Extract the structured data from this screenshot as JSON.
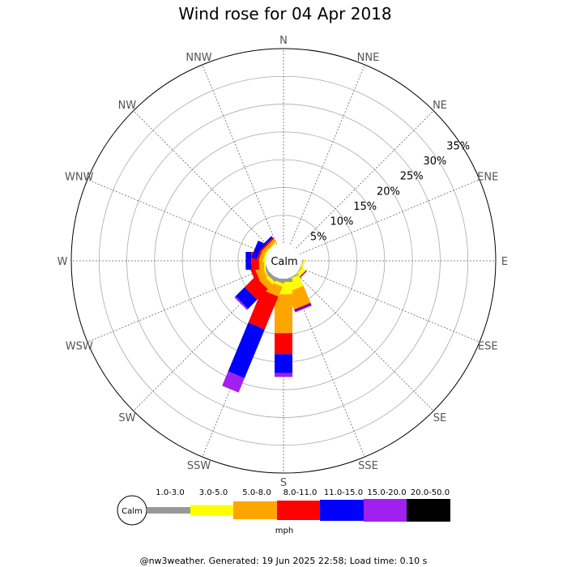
{
  "chart_data": {
    "type": "wind-rose",
    "title": "Wind rose for 04 Apr 2018",
    "directions": [
      "N",
      "NNE",
      "NE",
      "ENE",
      "E",
      "ESE",
      "SE",
      "SSE",
      "S",
      "SSW",
      "SW",
      "WSW",
      "W",
      "WNW",
      "NW",
      "NNW"
    ],
    "rings": [
      "5%",
      "10%",
      "15%",
      "20%",
      "25%",
      "30%",
      "35%"
    ],
    "ring_values": [
      5,
      10,
      15,
      20,
      25,
      30,
      35
    ],
    "max_ring": 35,
    "calm_label": "Calm",
    "unit": "mph",
    "speed_bins": [
      {
        "label": "1.0-3.0",
        "color": "#999999"
      },
      {
        "label": "3.0-5.0",
        "color": "#ffff00"
      },
      {
        "label": "5.0-8.0",
        "color": "#ffa500"
      },
      {
        "label": "8.0-11.0",
        "color": "#ff0000"
      },
      {
        "label": "11.0-15.0",
        "color": "#0000ff"
      },
      {
        "label": "15.0-20.0",
        "color": "#a020f0"
      },
      {
        "label": "20.0-50.0",
        "color": "#000000"
      }
    ],
    "frequencies": {
      "N": [
        0,
        0,
        0,
        0,
        0,
        0,
        0
      ],
      "NNE": [
        0,
        0,
        0,
        0,
        0,
        0,
        0
      ],
      "NE": [
        0,
        0,
        0,
        0,
        0,
        0,
        0
      ],
      "ENE": [
        0,
        0,
        0,
        0,
        0,
        0,
        0
      ],
      "E": [
        0,
        0,
        0,
        0,
        0,
        0,
        0
      ],
      "ESE": [
        0.1,
        0.3,
        0,
        0,
        0,
        0,
        0
      ],
      "SE": [
        0.1,
        0.7,
        0.1,
        0.1,
        0.1,
        0,
        0
      ],
      "SSE": [
        0.2,
        2.1,
        3.3,
        0.2,
        0.2,
        0.2,
        0
      ],
      "S": [
        0.6,
        2.2,
        7.0,
        3.8,
        3.4,
        0.7,
        0
      ],
      "SSW": [
        0.6,
        0.6,
        1.9,
        6.4,
        9.5,
        2.8,
        0
      ],
      "SW": [
        0.6,
        0.6,
        1.2,
        2.7,
        2.3,
        0.3,
        0
      ],
      "WSW": [
        0.4,
        0.3,
        1.4,
        0.8,
        0,
        0,
        0
      ],
      "W": [
        0,
        0.3,
        0.9,
        1.4,
        1.0,
        0,
        0
      ],
      "WNW": [
        0,
        0.3,
        0.7,
        0.4,
        1.0,
        0,
        0
      ],
      "NW": [
        0,
        0.2,
        0.6,
        0.3,
        0.4,
        0,
        0
      ],
      "NNW": [
        0,
        0,
        0,
        0,
        0,
        0,
        0
      ]
    }
  },
  "footer": "@nw3weather. Generated: 19 Jun 2025 22:58; Load time: 0.10 s"
}
